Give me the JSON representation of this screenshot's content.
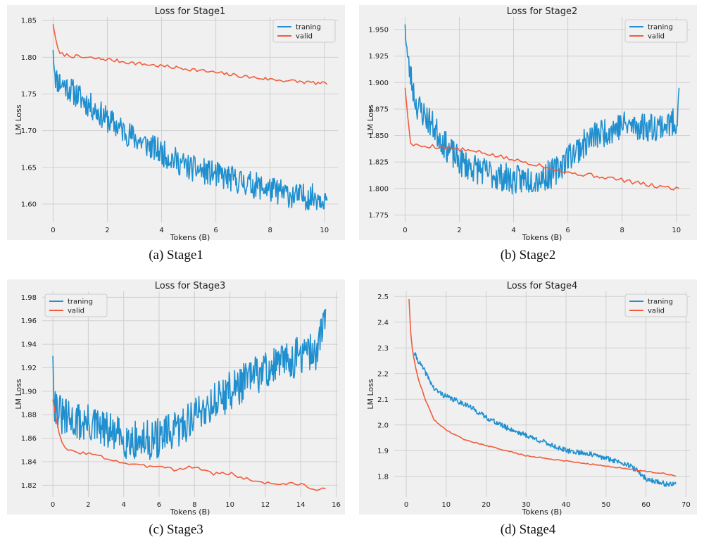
{
  "chart_data": [
    {
      "type": "line",
      "title": "Loss for Stage1",
      "caption": "(a)  Stage1",
      "xlabel": "Tokens (B)",
      "ylabel": "LM Loss",
      "xlim": [
        -0.4,
        10.5
      ],
      "ylim": [
        1.575,
        1.855
      ],
      "xticks": [
        0,
        2,
        4,
        6,
        8,
        10
      ],
      "yticks": [
        1.6,
        1.65,
        1.7,
        1.75,
        1.8,
        1.85
      ],
      "ytick_decimals": 2,
      "legend_position": "top-right",
      "grid": true,
      "series": [
        {
          "name": "traning",
          "color": "#1f8fcf",
          "noise": 0.018,
          "seed": 11,
          "samples": 450,
          "x": [
            0,
            0.1,
            0.5,
            1.0,
            2.0,
            3.0,
            4.0,
            5.0,
            6.0,
            7.0,
            8.0,
            9.0,
            10.0,
            10.1
          ],
          "y": [
            1.81,
            1.77,
            1.76,
            1.745,
            1.715,
            1.69,
            1.67,
            1.65,
            1.64,
            1.63,
            1.62,
            1.61,
            1.61,
            1.605
          ]
        },
        {
          "name": "valid",
          "color": "#f25c3b",
          "noise": 0.0025,
          "seed": 7,
          "samples": 120,
          "x": [
            0,
            0.2,
            0.5,
            1.0,
            2.0,
            3.0,
            4.0,
            5.0,
            6.0,
            7.0,
            8.0,
            9.0,
            10.0,
            10.1
          ],
          "y": [
            1.845,
            1.805,
            1.803,
            1.8,
            1.797,
            1.792,
            1.788,
            1.784,
            1.779,
            1.774,
            1.77,
            1.767,
            1.764,
            1.763
          ]
        }
      ]
    },
    {
      "type": "line",
      "title": "Loss for Stage2",
      "caption": "(b)  Stage2",
      "xlabel": "Tokens (B)",
      "ylabel": "LM Loss",
      "xlim": [
        -0.4,
        10.5
      ],
      "ylim": [
        1.768,
        1.962
      ],
      "xticks": [
        0,
        2,
        4,
        6,
        8,
        10
      ],
      "yticks": [
        1.775,
        1.8,
        1.825,
        1.85,
        1.875,
        1.9,
        1.925,
        1.95
      ],
      "ytick_decimals": 3,
      "legend_position": "top-right",
      "grid": true,
      "series": [
        {
          "name": "traning",
          "color": "#1f8fcf",
          "noise": 0.014,
          "seed": 23,
          "samples": 450,
          "x": [
            0,
            0.1,
            0.4,
            1.0,
            1.5,
            2.0,
            3.0,
            4.0,
            5.0,
            5.5,
            6.0,
            7.0,
            8.0,
            9.0,
            10.0,
            10.1
          ],
          "y": [
            1.955,
            1.92,
            1.88,
            1.86,
            1.84,
            1.825,
            1.815,
            1.808,
            1.81,
            1.815,
            1.83,
            1.85,
            1.86,
            1.858,
            1.862,
            1.895
          ]
        },
        {
          "name": "valid",
          "color": "#f25c3b",
          "noise": 0.002,
          "seed": 5,
          "samples": 100,
          "x": [
            0,
            0.2,
            0.5,
            1.0,
            2.0,
            3.0,
            4.0,
            5.0,
            6.0,
            7.0,
            8.0,
            9.0,
            10.0,
            10.1
          ],
          "y": [
            1.895,
            1.842,
            1.84,
            1.84,
            1.837,
            1.833,
            1.827,
            1.822,
            1.815,
            1.812,
            1.808,
            1.803,
            1.8,
            1.8
          ]
        }
      ]
    },
    {
      "type": "line",
      "title": "Loss for Stage3",
      "caption": "(c)  Stage3",
      "xlabel": "Tokens (B)",
      "ylabel": "LM Loss",
      "xlim": [
        -0.6,
        16.1
      ],
      "ylim": [
        1.81,
        1.985
      ],
      "xticks": [
        0,
        2,
        4,
        6,
        8,
        10,
        12,
        14,
        16
      ],
      "yticks": [
        1.82,
        1.84,
        1.86,
        1.88,
        1.9,
        1.92,
        1.94,
        1.96,
        1.98
      ],
      "ytick_decimals": 2,
      "legend_position": "top-left",
      "grid": true,
      "series": [
        {
          "name": "traning",
          "color": "#1f8fcf",
          "noise": 0.017,
          "seed": 31,
          "samples": 450,
          "x": [
            0,
            0.1,
            0.5,
            1.0,
            2.0,
            3.0,
            4.0,
            5.0,
            6.0,
            7.0,
            8.0,
            9.0,
            10.0,
            11.0,
            12.0,
            13.0,
            14.0,
            15.0,
            15.4
          ],
          "y": [
            1.93,
            1.89,
            1.878,
            1.875,
            1.872,
            1.866,
            1.86,
            1.857,
            1.86,
            1.866,
            1.88,
            1.89,
            1.9,
            1.91,
            1.918,
            1.925,
            1.93,
            1.935,
            1.97
          ]
        },
        {
          "name": "valid",
          "color": "#f25c3b",
          "noise": 0.0015,
          "seed": 3,
          "samples": 90,
          "x": [
            0,
            0.4,
            0.6,
            1.0,
            2.0,
            3.0,
            4.0,
            5.0,
            6.0,
            7.0,
            8.0,
            9.0,
            10.0,
            11.0,
            12.0,
            13.0,
            14.0,
            15.0,
            15.4
          ],
          "y": [
            1.893,
            1.86,
            1.852,
            1.849,
            1.847,
            1.843,
            1.839,
            1.836,
            1.837,
            1.833,
            1.836,
            1.83,
            1.83,
            1.825,
            1.822,
            1.821,
            1.821,
            1.815,
            1.817
          ]
        }
      ]
    },
    {
      "type": "line",
      "title": "Loss for Stage4",
      "caption": "(d)  Stage4",
      "xlabel": "Tokens (B)",
      "ylabel": "LM Loss",
      "xlim": [
        -3,
        71
      ],
      "ylim": [
        1.72,
        2.52
      ],
      "xticks": [
        0,
        10,
        20,
        30,
        40,
        50,
        60,
        70
      ],
      "yticks": [
        1.8,
        1.9,
        2.0,
        2.1,
        2.2,
        2.3,
        2.4,
        2.5
      ],
      "ytick_decimals": 1,
      "legend_position": "top-right",
      "grid": true,
      "series": [
        {
          "name": "traning",
          "color": "#1f8fcf",
          "noise": 0.01,
          "seed": 41,
          "samples": 450,
          "x": [
            2,
            3,
            5,
            7,
            10,
            15,
            20,
            25,
            30,
            35,
            40,
            45,
            50,
            55,
            58,
            60,
            65,
            67.5
          ],
          "y": [
            2.28,
            2.25,
            2.2,
            2.14,
            2.11,
            2.08,
            2.03,
            1.99,
            1.96,
            1.93,
            1.9,
            1.89,
            1.87,
            1.85,
            1.82,
            1.79,
            1.77,
            1.77
          ]
        },
        {
          "name": "valid",
          "color": "#f25c3b",
          "noise": 0.002,
          "seed": 9,
          "samples": 160,
          "x": [
            0.7,
            1,
            1.5,
            2,
            3,
            5,
            7,
            10,
            15,
            20,
            25,
            30,
            35,
            40,
            45,
            50,
            55,
            60,
            65,
            67.5
          ],
          "y": [
            2.49,
            2.38,
            2.3,
            2.25,
            2.18,
            2.09,
            2.02,
            1.98,
            1.94,
            1.92,
            1.9,
            1.88,
            1.87,
            1.86,
            1.85,
            1.84,
            1.83,
            1.82,
            1.81,
            1.8
          ]
        }
      ]
    }
  ]
}
